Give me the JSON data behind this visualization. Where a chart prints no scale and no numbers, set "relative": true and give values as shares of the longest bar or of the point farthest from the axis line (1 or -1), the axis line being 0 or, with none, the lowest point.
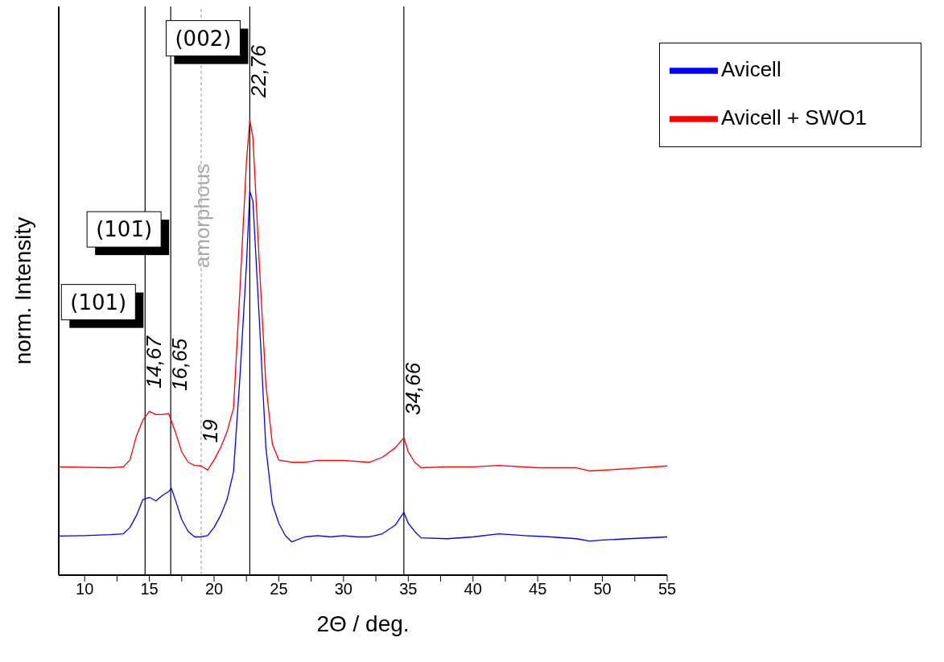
{
  "chart_data": {
    "type": "line",
    "relative": true,
    "xlabel": "2Θ / deg.",
    "ylabel": "norm. Intensity",
    "xlim": [
      8,
      55
    ],
    "xticks": [
      10,
      {
        "value": 12.5,
        "label": null
      },
      15,
      {
        "value": 17.5,
        "label": null
      },
      20,
      {
        "value": 22.5,
        "label": null
      },
      25,
      {
        "value": 27.5,
        "label": null
      },
      30,
      {
        "value": 32.5,
        "label": null
      },
      35,
      {
        "value": 37.5,
        "label": null
      },
      40,
      {
        "value": 42.5,
        "label": null
      },
      45,
      {
        "value": 47.5,
        "label": null
      },
      50,
      {
        "value": 52.5,
        "label": null
      },
      55
    ],
    "legend": "top right",
    "marker": "none",
    "line_style": "solid",
    "grid": false,
    "series": [
      {
        "name": "Avicell",
        "color": "#0000ff",
        "x": [
          8,
          10,
          12,
          13,
          13.5,
          14,
          14.5,
          15,
          15.5,
          16,
          16.5,
          16.7,
          17,
          17.5,
          18,
          18.5,
          19,
          19.5,
          20,
          20.5,
          21,
          21.5,
          22,
          22.5,
          22.76,
          23,
          23.5,
          24,
          24.5,
          25,
          25.5,
          26,
          27,
          28,
          29,
          30,
          31,
          32,
          33,
          34,
          34.66,
          35,
          35.5,
          36,
          38,
          40,
          42,
          44,
          46,
          48,
          49,
          50,
          52,
          55
        ],
        "values": [
          0.086,
          0.087,
          0.089,
          0.091,
          0.105,
          0.131,
          0.166,
          0.171,
          0.163,
          0.175,
          0.184,
          0.191,
          0.166,
          0.122,
          0.096,
          0.084,
          0.084,
          0.087,
          0.105,
          0.131,
          0.166,
          0.227,
          0.437,
          0.682,
          0.844,
          0.822,
          0.559,
          0.28,
          0.157,
          0.114,
          0.087,
          0.073,
          0.084,
          0.087,
          0.084,
          0.087,
          0.084,
          0.084,
          0.091,
          0.11,
          0.138,
          0.114,
          0.096,
          0.082,
          0.08,
          0.084,
          0.091,
          0.087,
          0.084,
          0.08,
          0.075,
          0.077,
          0.08,
          0.084
        ]
      },
      {
        "name": "Avicell + SWO1",
        "color": "#ff0000",
        "x": [
          8,
          12,
          13,
          13.5,
          14,
          14.5,
          15,
          15.5,
          16,
          16.5,
          17,
          17.5,
          18,
          18.5,
          19,
          19.5,
          20,
          20.5,
          21,
          21.5,
          22,
          22.5,
          22.76,
          23,
          23.5,
          24,
          24.5,
          25,
          26,
          27,
          28,
          30,
          32,
          33,
          34,
          34.66,
          35,
          35.5,
          36,
          38,
          40,
          42,
          45,
          48,
          49,
          52,
          55
        ],
        "values": [
          0.238,
          0.236,
          0.238,
          0.253,
          0.306,
          0.341,
          0.36,
          0.353,
          0.353,
          0.355,
          0.315,
          0.271,
          0.248,
          0.241,
          0.24,
          0.231,
          0.253,
          0.28,
          0.315,
          0.367,
          0.629,
          0.909,
          1,
          0.962,
          0.682,
          0.42,
          0.288,
          0.253,
          0.248,
          0.248,
          0.252,
          0.252,
          0.248,
          0.259,
          0.28,
          0.302,
          0.271,
          0.248,
          0.236,
          0.238,
          0.238,
          0.241,
          0.236,
          0.236,
          0.229,
          0.234,
          0.24
        ]
      }
    ],
    "ref_lines": [
      {
        "axis": "x",
        "value": 14.67,
        "label": "14,67",
        "color": "#000000",
        "line_style": "solid"
      },
      {
        "axis": "x",
        "value": 16.65,
        "label": "16,65",
        "color": "#000000",
        "line_style": "solid"
      },
      {
        "axis": "x",
        "value": 19,
        "label": "19",
        "color": "#aaaaaa",
        "line_style": "dashed"
      },
      {
        "axis": "x",
        "value": 22.76,
        "label": "22,76",
        "color": "#000000",
        "line_style": "solid"
      },
      {
        "axis": "x",
        "value": 34.66,
        "label": "34,66",
        "color": "#000000",
        "line_style": "solid"
      }
    ],
    "annotations": [
      {
        "text": "(101)",
        "x": 14.67,
        "y": 0.6
      },
      {
        "text": "(101̄)",
        "x": 16.65,
        "y": 0.76
      },
      {
        "text": "(002)",
        "x": 22.76,
        "y": 1.18
      },
      {
        "text": "amorphous",
        "x": 19,
        "y": 0.79
      }
    ]
  }
}
